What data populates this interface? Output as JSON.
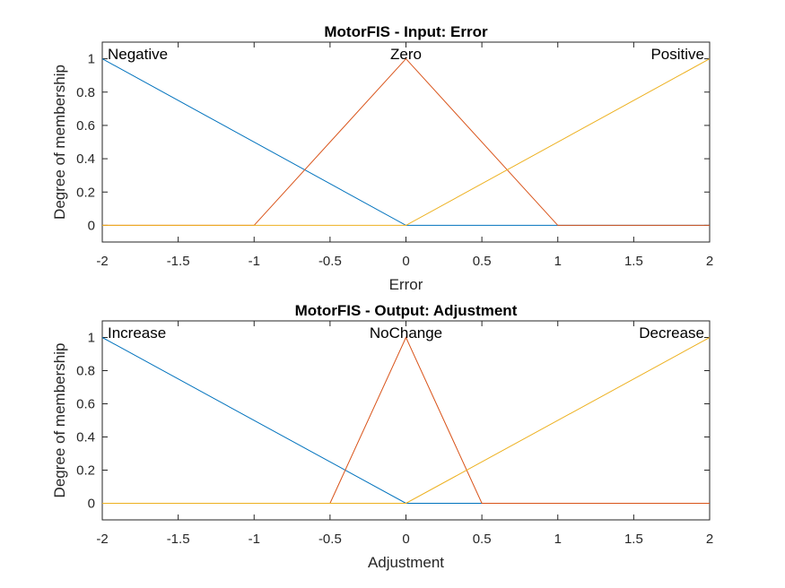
{
  "chart_data": [
    {
      "type": "line",
      "title": "MotorFIS - Input: Error",
      "xlabel": "Error",
      "ylabel": "Degree of membership",
      "xlim": [
        -2,
        2
      ],
      "ylim": [
        -0.1,
        1.1
      ],
      "xticks": [
        "-2",
        "-1.5",
        "-1",
        "-0.5",
        "0",
        "0.5",
        "1",
        "1.5",
        "2"
      ],
      "yticks": [
        "0",
        "0.2",
        "0.4",
        "0.6",
        "0.8",
        "1"
      ],
      "grid": false,
      "series": [
        {
          "name": "Negative",
          "color": "#0072BD",
          "x": [
            -2,
            0,
            2
          ],
          "y": [
            1,
            0,
            0
          ],
          "label_x": -2,
          "label_anchor": "start"
        },
        {
          "name": "Zero",
          "color": "#D95319",
          "x": [
            -2,
            -1,
            0,
            1,
            2
          ],
          "y": [
            0,
            0,
            1,
            0,
            0
          ],
          "label_x": 0,
          "label_anchor": "middle"
        },
        {
          "name": "Positive",
          "color": "#EDB120",
          "x": [
            -2,
            0,
            2
          ],
          "y": [
            0,
            0,
            1
          ],
          "label_x": 2,
          "label_anchor": "end"
        }
      ]
    },
    {
      "type": "line",
      "title": "MotorFIS - Output: Adjustment",
      "xlabel": "Adjustment",
      "ylabel": "Degree of membership",
      "xlim": [
        -2,
        2
      ],
      "ylim": [
        -0.1,
        1.1
      ],
      "xticks": [
        "-2",
        "-1.5",
        "-1",
        "-0.5",
        "0",
        "0.5",
        "1",
        "1.5",
        "2"
      ],
      "yticks": [
        "0",
        "0.2",
        "0.4",
        "0.6",
        "0.8",
        "1"
      ],
      "grid": false,
      "series": [
        {
          "name": "Increase",
          "color": "#0072BD",
          "x": [
            -2,
            0,
            2
          ],
          "y": [
            1,
            0,
            0
          ],
          "label_x": -2,
          "label_anchor": "start"
        },
        {
          "name": "NoChange",
          "color": "#D95319",
          "x": [
            -2,
            -0.5,
            0,
            0.5,
            2
          ],
          "y": [
            0,
            0,
            1,
            0,
            0
          ],
          "label_x": 0,
          "label_anchor": "middle"
        },
        {
          "name": "Decrease",
          "color": "#EDB120",
          "x": [
            -2,
            0,
            2
          ],
          "y": [
            0,
            0,
            1
          ],
          "label_x": 2,
          "label_anchor": "end"
        }
      ]
    }
  ]
}
